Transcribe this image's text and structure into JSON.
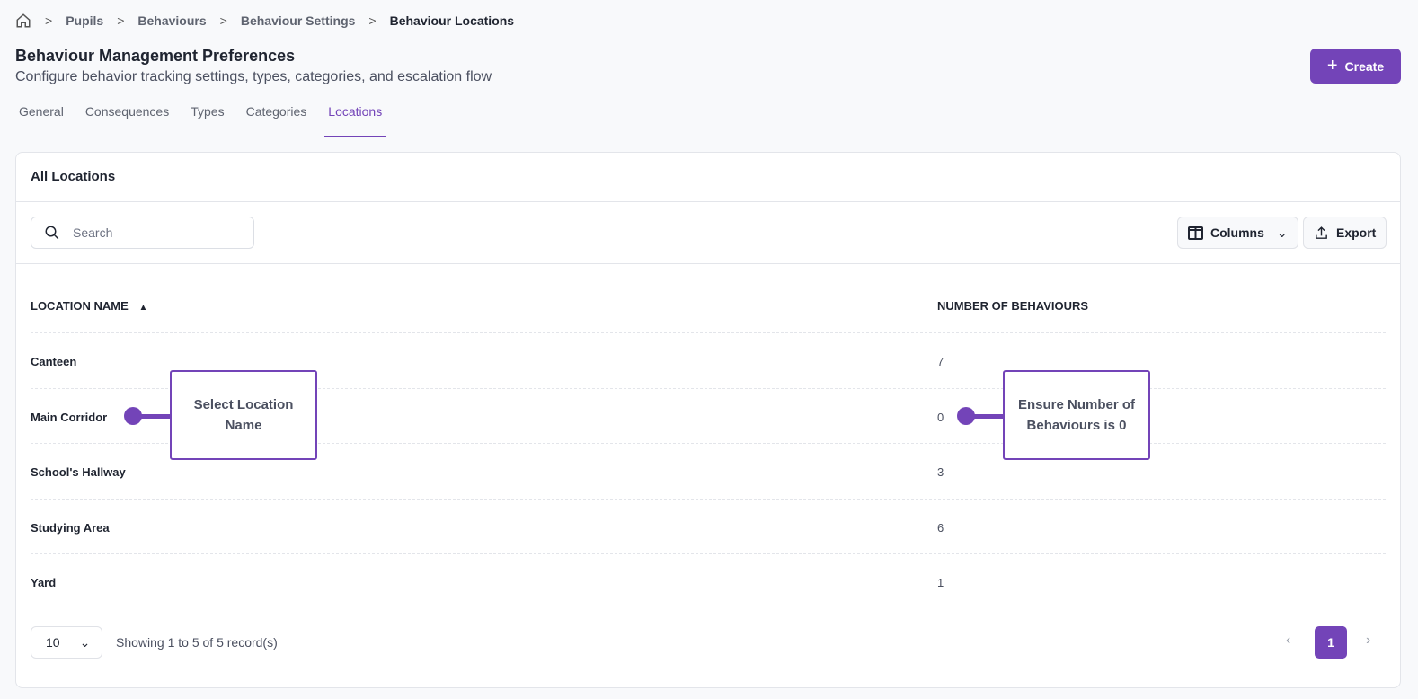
{
  "breadcrumb": {
    "items": [
      "Pupils",
      "Behaviours",
      "Behaviour Settings"
    ],
    "current": "Behaviour Locations"
  },
  "header": {
    "title": "Behaviour Management Preferences",
    "subtitle": "Configure behavior tracking settings, types, categories, and escalation flow",
    "create_label": "Create"
  },
  "tabs": [
    {
      "label": "General"
    },
    {
      "label": "Consequences"
    },
    {
      "label": "Types"
    },
    {
      "label": "Categories"
    },
    {
      "label": "Locations",
      "active": true
    }
  ],
  "card": {
    "title": "All Locations",
    "search_placeholder": "Search",
    "columns_label": "Columns",
    "export_label": "Export"
  },
  "table": {
    "headers": [
      "LOCATION NAME",
      "NUMBER OF BEHAVIOURS"
    ],
    "sort": "ascending",
    "rows": [
      {
        "name": "Canteen",
        "count": "7"
      },
      {
        "name": "Main Corridor",
        "count": "0"
      },
      {
        "name": "School's Hallway",
        "count": "3"
      },
      {
        "name": "Studying Area",
        "count": "6"
      },
      {
        "name": "Yard",
        "count": "1"
      }
    ]
  },
  "footer": {
    "page_size": "10",
    "showing": "Showing 1 to 5 of 5 record(s)",
    "current_page": "1"
  },
  "annotations": {
    "left": "Select Location Name",
    "right": "Ensure Number of Behaviours is 0"
  },
  "colors": {
    "accent": "#7344b8"
  }
}
